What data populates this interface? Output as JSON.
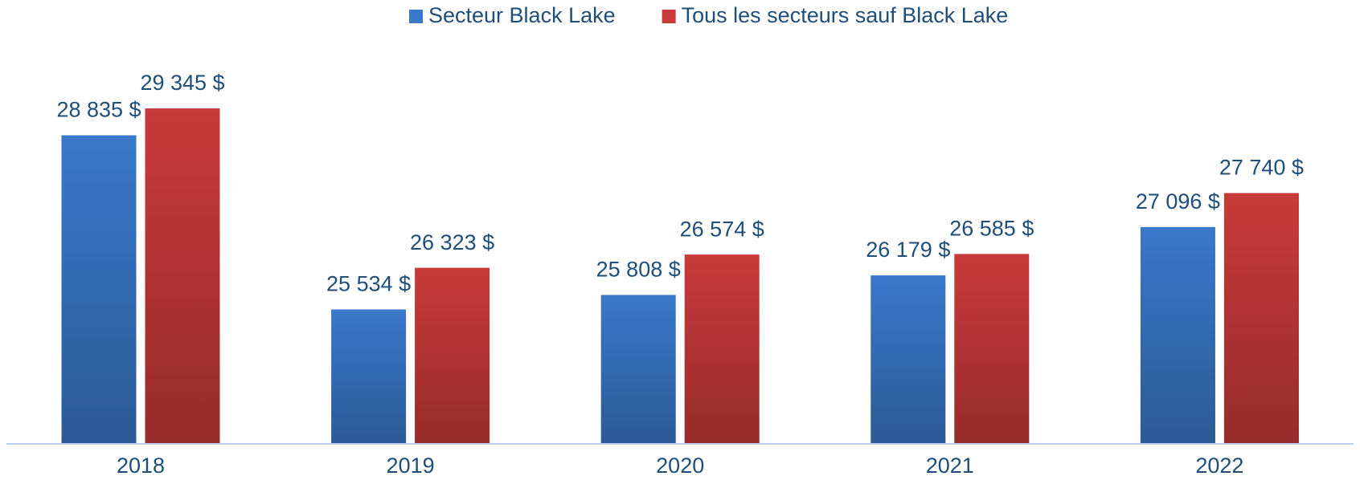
{
  "chart_data": {
    "type": "bar",
    "categories": [
      "2018",
      "2019",
      "2020",
      "2021",
      "2022"
    ],
    "series": [
      {
        "name": "Secteur Black Lake",
        "color": "#3a78c9",
        "values": [
          28835,
          25534,
          25808,
          26179,
          27096
        ],
        "value_labels": [
          "28 835 $",
          "25 534 $",
          "25 808 $",
          "26 179 $",
          "27 096 $"
        ]
      },
      {
        "name": "Tous les secteurs sauf Black Lake",
        "color": "#c93a3a",
        "values": [
          29345,
          26323,
          26574,
          26585,
          27740
        ],
        "value_labels": [
          "29 345 $",
          "26 323 $",
          "26 574 $",
          "26 585 $",
          "27 740 $"
        ]
      }
    ],
    "ylim": [
      23000,
      30000
    ],
    "legend": "top"
  }
}
